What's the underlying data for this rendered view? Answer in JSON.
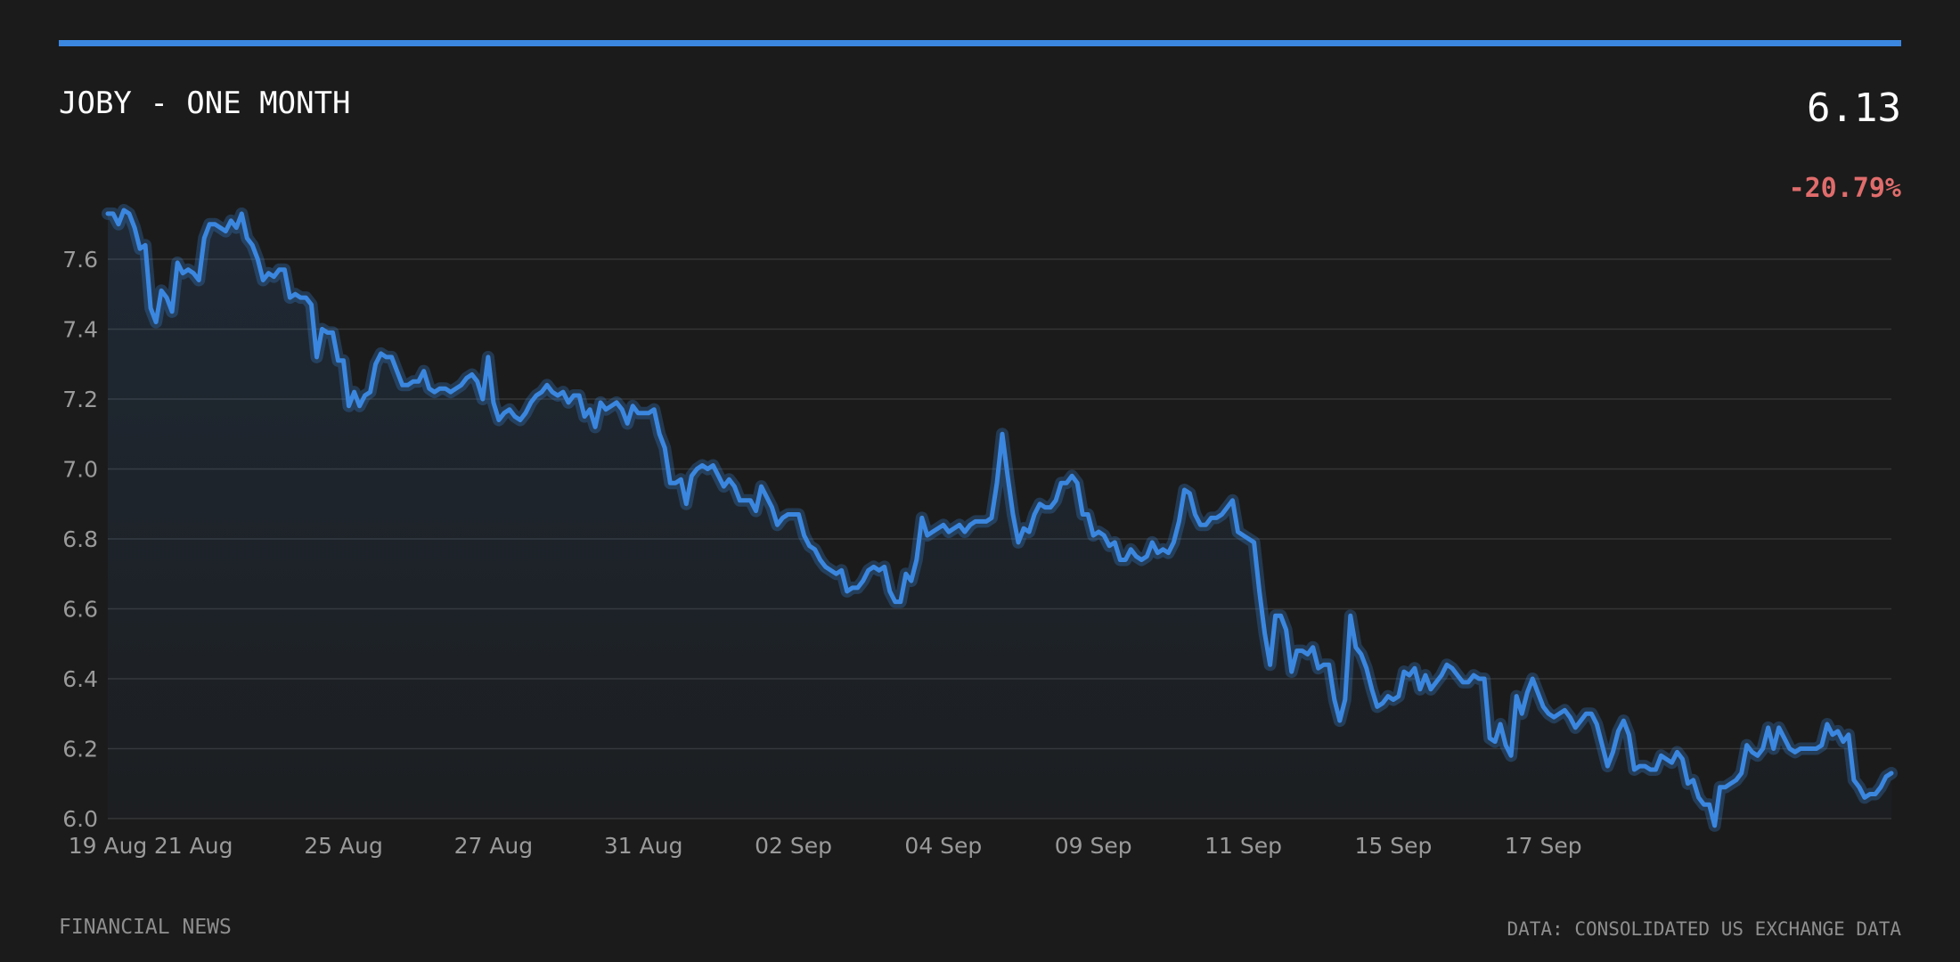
{
  "header": {
    "title": "JOBY - ONE MONTH",
    "price": "6.13",
    "change": "-20.79%"
  },
  "footer": {
    "source_left": "FINANCIAL NEWS",
    "source_right": "DATA: CONSOLIDATED US EXCHANGE DATA"
  },
  "colors": {
    "accent": "#3b87e0",
    "negative": "#e06c6c",
    "background": "#1b1b1b"
  },
  "chart_data": {
    "type": "area",
    "title": "JOBY - ONE MONTH",
    "xlabel": "",
    "ylabel": "",
    "ylim": [
      6.0,
      7.74
    ],
    "grid": true,
    "yticks": [
      6.0,
      6.2,
      6.4,
      6.6,
      6.8,
      7.0,
      7.2,
      7.4,
      7.6
    ],
    "xtick_labels": [
      "19 Aug",
      "21 Aug",
      "25 Aug",
      "27 Aug",
      "31 Aug",
      "02 Sep",
      "04 Sep",
      "09 Sep",
      "11 Sep",
      "15 Sep",
      "17 Sep"
    ],
    "xtick_index": [
      0,
      16,
      44,
      72,
      100,
      128,
      156,
      184,
      212,
      240,
      268
    ],
    "series": [
      {
        "values": [
          7.73,
          7.73,
          7.7,
          7.74,
          7.73,
          7.69,
          7.63,
          7.64,
          7.46,
          7.42,
          7.51,
          7.49,
          7.45,
          7.59,
          7.56,
          7.57,
          7.56,
          7.54,
          7.66,
          7.7,
          7.7,
          7.69,
          7.68,
          7.71,
          7.69,
          7.73,
          7.66,
          7.64,
          7.6,
          7.54,
          7.56,
          7.55,
          7.57,
          7.57,
          7.49,
          7.5,
          7.49,
          7.49,
          7.47,
          7.32,
          7.4,
          7.39,
          7.39,
          7.31,
          7.31,
          7.18,
          7.22,
          7.18,
          7.21,
          7.22,
          7.3,
          7.33,
          7.32,
          7.32,
          7.28,
          7.24,
          7.24,
          7.25,
          7.25,
          7.28,
          7.23,
          7.22,
          7.23,
          7.23,
          7.22,
          7.23,
          7.24,
          7.26,
          7.27,
          7.25,
          7.2,
          7.32,
          7.19,
          7.14,
          7.16,
          7.17,
          7.15,
          7.14,
          7.16,
          7.19,
          7.21,
          7.22,
          7.24,
          7.22,
          7.21,
          7.22,
          7.19,
          7.21,
          7.21,
          7.15,
          7.17,
          7.12,
          7.19,
          7.17,
          7.18,
          7.19,
          7.17,
          7.13,
          7.18,
          7.16,
          7.16,
          7.16,
          7.17,
          7.1,
          7.06,
          6.96,
          6.96,
          6.97,
          6.9,
          6.98,
          7.0,
          7.01,
          7.0,
          7.01,
          6.98,
          6.95,
          6.97,
          6.95,
          6.91,
          6.91,
          6.91,
          6.88,
          6.95,
          6.92,
          6.89,
          6.84,
          6.86,
          6.87,
          6.87,
          6.87,
          6.81,
          6.78,
          6.77,
          6.74,
          6.72,
          6.71,
          6.7,
          6.71,
          6.65,
          6.66,
          6.66,
          6.68,
          6.71,
          6.72,
          6.71,
          6.72,
          6.65,
          6.62,
          6.62,
          6.7,
          6.68,
          6.74,
          6.86,
          6.81,
          6.82,
          6.83,
          6.84,
          6.82,
          6.83,
          6.84,
          6.82,
          6.84,
          6.85,
          6.85,
          6.85,
          6.86,
          6.96,
          7.1,
          6.98,
          6.87,
          6.79,
          6.83,
          6.82,
          6.87,
          6.9,
          6.89,
          6.89,
          6.91,
          6.96,
          6.96,
          6.98,
          6.96,
          6.87,
          6.87,
          6.81,
          6.82,
          6.81,
          6.78,
          6.79,
          6.74,
          6.74,
          6.77,
          6.75,
          6.74,
          6.75,
          6.79,
          6.76,
          6.77,
          6.76,
          6.79,
          6.85,
          6.94,
          6.93,
          6.87,
          6.84,
          6.84,
          6.86,
          6.86,
          6.87,
          6.89,
          6.91,
          6.82,
          6.81,
          6.8,
          6.79,
          6.65,
          6.53,
          6.44,
          6.58,
          6.58,
          6.54,
          6.42,
          6.48,
          6.48,
          6.47,
          6.49,
          6.43,
          6.44,
          6.44,
          6.34,
          6.28,
          6.34,
          6.58,
          6.49,
          6.47,
          6.43,
          6.37,
          6.32,
          6.33,
          6.35,
          6.34,
          6.35,
          6.42,
          6.41,
          6.43,
          6.37,
          6.41,
          6.37,
          6.39,
          6.41,
          6.44,
          6.43,
          6.41,
          6.39,
          6.39,
          6.41,
          6.4,
          6.4,
          6.23,
          6.22,
          6.27,
          6.21,
          6.18,
          6.35,
          6.3,
          6.36,
          6.4,
          6.36,
          6.32,
          6.3,
          6.29,
          6.3,
          6.31,
          6.29,
          6.26,
          6.28,
          6.3,
          6.3,
          6.27,
          6.21,
          6.15,
          6.19,
          6.25,
          6.28,
          6.24,
          6.14,
          6.15,
          6.15,
          6.14,
          6.14,
          6.18,
          6.17,
          6.16,
          6.19,
          6.17,
          6.1,
          6.11,
          6.06,
          6.04,
          6.04,
          5.98,
          6.09,
          6.09,
          6.1,
          6.11,
          6.13,
          6.21,
          6.19,
          6.18,
          6.2,
          6.26,
          6.2,
          6.26,
          6.23,
          6.2,
          6.19,
          6.2,
          6.2,
          6.2,
          6.2,
          6.21,
          6.27,
          6.24,
          6.25,
          6.22,
          6.24,
          6.11,
          6.09,
          6.06,
          6.07,
          6.07,
          6.09,
          6.12,
          6.13
        ]
      }
    ]
  }
}
